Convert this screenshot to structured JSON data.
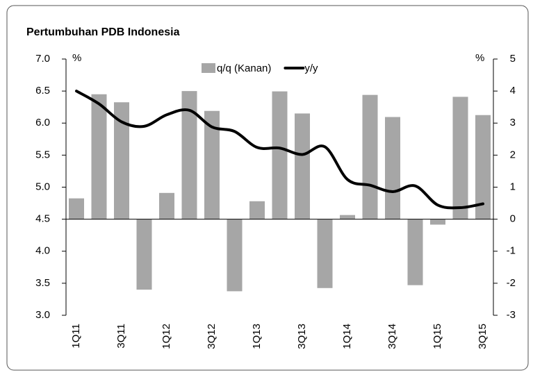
{
  "chart_data": {
    "type": "combo",
    "title": "Pertumbuhan PDB Indonesia",
    "y_label": "%",
    "y2_label": "%",
    "categories": [
      "1Q11",
      null,
      "3Q11",
      null,
      "1Q12",
      null,
      "3Q12",
      null,
      "1Q13",
      null,
      "3Q13",
      null,
      "1Q14",
      null,
      "3Q14",
      null,
      "1Q15",
      null,
      "3Q15"
    ],
    "series": [
      {
        "name": "q/q (Kanan)",
        "type": "bar",
        "axis": "y2",
        "color": "#a6a6a6",
        "values": [
          0.65,
          3.9,
          3.65,
          -2.2,
          0.82,
          4.0,
          3.38,
          -2.25,
          0.56,
          3.99,
          3.3,
          -2.15,
          0.13,
          3.88,
          3.19,
          -2.06,
          -0.17,
          3.82,
          3.25
        ]
      },
      {
        "name": "y/y",
        "type": "line",
        "color": "#000000",
        "values": [
          6.5,
          6.3,
          6.02,
          5.95,
          6.13,
          6.2,
          5.94,
          5.87,
          5.62,
          5.61,
          5.51,
          5.63,
          5.12,
          5.03,
          4.93,
          5.02,
          4.72,
          4.68,
          4.74
        ]
      }
    ],
    "ylim": [
      3.0,
      7.0
    ],
    "yticks": [
      {
        "value": 3.0,
        "label": "3.0"
      },
      {
        "value": 3.5,
        "label": "3.5"
      },
      {
        "value": 4.0,
        "label": "4.0"
      },
      {
        "value": 4.5,
        "label": "4.5"
      },
      {
        "value": 5.0,
        "label": "5.0"
      },
      {
        "value": 5.5,
        "label": "5.5"
      },
      {
        "value": 6.0,
        "label": "6.0"
      },
      {
        "value": 6.5,
        "label": "6.5"
      },
      {
        "value": 7.0,
        "label": "7.0"
      }
    ],
    "y2lim": [
      -3,
      5
    ],
    "y2ticks": [
      -3,
      -2,
      -1,
      0,
      1,
      2,
      3,
      4,
      5
    ],
    "legend": "top"
  }
}
